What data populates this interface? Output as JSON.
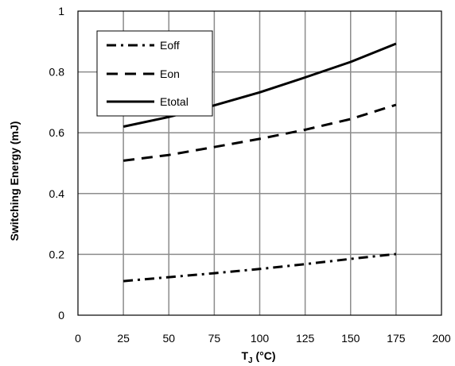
{
  "chart_data": {
    "type": "line",
    "title": "",
    "xlabel_main": "T",
    "xlabel_sub": "J",
    "xlabel_unit": " (°C)",
    "ylabel": "Switching Energy  (mJ)",
    "xlim": [
      0,
      200
    ],
    "ylim": [
      0,
      1
    ],
    "x_ticks": [
      0,
      25,
      50,
      75,
      100,
      125,
      150,
      175,
      200
    ],
    "x_tick_labels": [
      "0",
      "25",
      "50",
      "75",
      "100",
      "125",
      "150",
      "175",
      "200"
    ],
    "y_ticks": [
      0,
      0.2,
      0.4,
      0.6,
      0.8,
      1
    ],
    "y_tick_labels": [
      "0",
      "0.2",
      "0.4",
      "0.6",
      "0.8",
      "1"
    ],
    "grid": true,
    "legend_position": "top-left",
    "series": [
      {
        "name": "Eoff",
        "style": "dash-dot",
        "color": "#000000",
        "x": [
          25,
          50,
          75,
          100,
          125,
          150,
          175
        ],
        "y": [
          0.112,
          0.125,
          0.138,
          0.152,
          0.168,
          0.185,
          0.201
        ]
      },
      {
        "name": "Eon",
        "style": "dashed",
        "color": "#000000",
        "x": [
          25,
          50,
          75,
          100,
          125,
          150,
          175
        ],
        "y": [
          0.508,
          0.527,
          0.553,
          0.58,
          0.61,
          0.645,
          0.692
        ]
      },
      {
        "name": "Etotal",
        "style": "solid",
        "color": "#000000",
        "x": [
          25,
          50,
          75,
          100,
          125,
          150,
          175
        ],
        "y": [
          0.62,
          0.652,
          0.69,
          0.733,
          0.782,
          0.833,
          0.893
        ]
      }
    ]
  }
}
